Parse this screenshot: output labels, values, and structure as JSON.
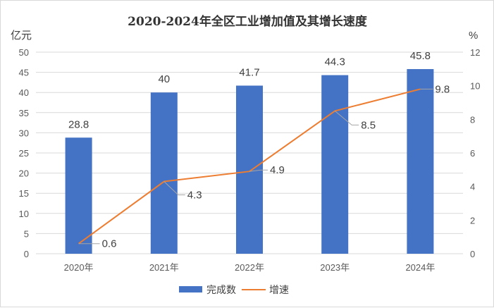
{
  "chart_data": {
    "type": "bar+line",
    "title": "2020-2024年全区工业增加值及其增长速度",
    "categories": [
      "2020年",
      "2021年",
      "2022年",
      "2023年",
      "2024年"
    ],
    "left_axis": {
      "unit": "亿元",
      "range": [
        0,
        50
      ],
      "ticks": [
        "0",
        "5",
        "10",
        "15",
        "20",
        "25",
        "30",
        "35",
        "40",
        "45",
        "50"
      ]
    },
    "right_axis": {
      "unit": "%",
      "range": [
        0,
        12
      ],
      "ticks": [
        "0",
        "2",
        "4",
        "6",
        "8",
        "10",
        "12"
      ]
    },
    "grid": true,
    "legend_position": "bottom",
    "series": [
      {
        "name": "完成数",
        "type": "bar",
        "axis": "left",
        "color": "#4472C4",
        "values": [
          28.8,
          40,
          41.7,
          44.3,
          45.8
        ],
        "labels": [
          "28.8",
          "40",
          "41.7",
          "44.3",
          "45.8"
        ]
      },
      {
        "name": "增速",
        "type": "line",
        "axis": "right",
        "color": "#ED7D31",
        "values": [
          0.6,
          4.3,
          4.9,
          8.5,
          9.8
        ],
        "labels": [
          "0.6",
          "4.3",
          "4.9",
          "8.5",
          "9.8"
        ]
      }
    ]
  }
}
